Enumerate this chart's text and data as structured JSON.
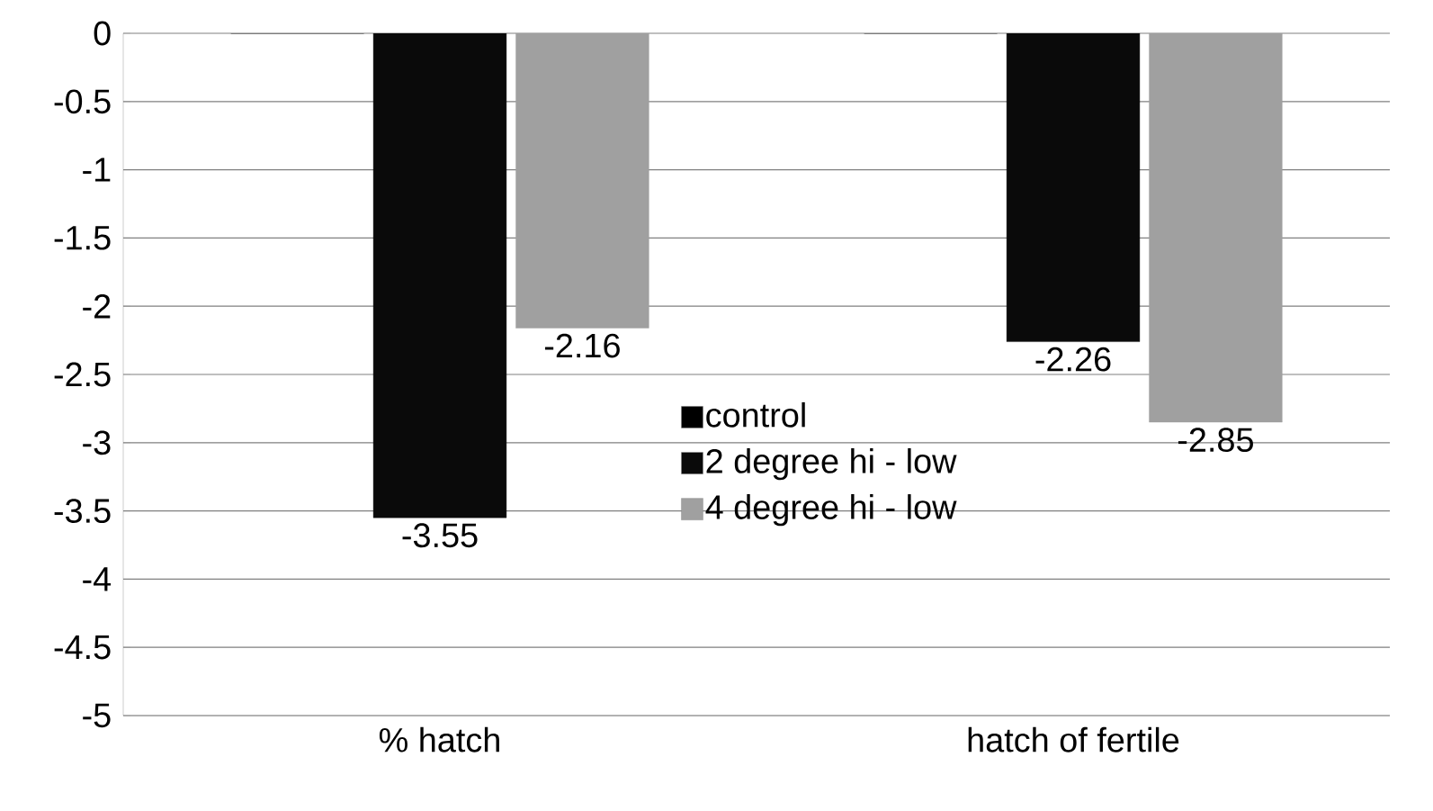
{
  "chart_data": {
    "type": "bar",
    "categories": [
      "% hatch",
      "hatch of fertile"
    ],
    "series": [
      {
        "name": "control",
        "color": "#000000",
        "values": [
          0,
          0
        ],
        "value_labels": [
          null,
          null
        ]
      },
      {
        "name": "2 degree hi - low",
        "color": "#0a0a0a",
        "values": [
          -3.55,
          -2.26
        ],
        "value_labels": [
          "-3.55",
          "-2.26"
        ]
      },
      {
        "name": "4 degree hi - low",
        "color": "#a0a0a0",
        "values": [
          -2.16,
          -2.85
        ],
        "value_labels": [
          "-2.16",
          "-2.85"
        ]
      }
    ],
    "ylim": [
      -5,
      0
    ],
    "yticks": [
      0,
      -0.5,
      -1,
      -1.5,
      -2,
      -2.5,
      -3,
      -3.5,
      -4,
      -4.5,
      -5
    ],
    "grid": "y",
    "legend": "center"
  }
}
